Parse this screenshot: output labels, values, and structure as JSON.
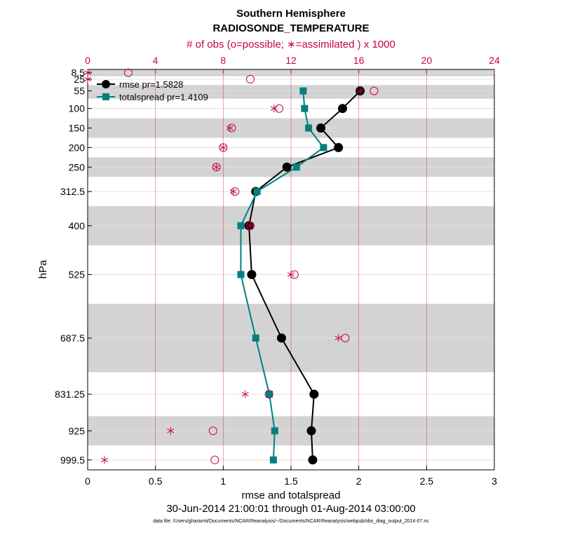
{
  "colors": {
    "rmse": "#000000",
    "spread": "#008080",
    "obs": "#c8004f",
    "band": "#d3d3d3"
  },
  "chart_data": {
    "type": "line",
    "title": "Southern Hemisphere",
    "subtitle": "RADIOSONDE_TEMPERATURE",
    "top_axis_label": "# of obs (o=possible; ∗=assimilated ) x 1000",
    "xlabel": "rmse and totalspread",
    "ylabel": "hPa",
    "date_range": "30-Jun-2014 21:00:01 through 01-Aug-2014 03:00:00",
    "file_note": "data file: /Users/gharamti/Documents/NCAR/Reanalysis/~/Documents/NCAR/Reanalysis/webpub/obs_diag_output_2014-07.nc",
    "xlim": [
      0,
      3
    ],
    "xticks": [
      "0",
      "0.5",
      "1",
      "1.5",
      "2",
      "2.5",
      "3"
    ],
    "top_xlim": [
      0,
      24
    ],
    "top_xticks": [
      "0",
      "4",
      "8",
      "12",
      "16",
      "20",
      "24"
    ],
    "ylim_hPa": [
      1025,
      0
    ],
    "levels": [
      "8.5",
      "25",
      "55",
      "100",
      "150",
      "200",
      "250",
      "312.5",
      "400",
      "525",
      "687.5",
      "831.25",
      "925",
      "999.5"
    ],
    "level_values": [
      8.5,
      25,
      55,
      100,
      150,
      200,
      250,
      312.5,
      400,
      525,
      687.5,
      831.25,
      925,
      999.5
    ],
    "bands_hPa": [
      [
        0,
        17.5
      ],
      [
        40,
        75
      ],
      [
        125,
        175
      ],
      [
        225,
        275
      ],
      [
        350,
        450
      ],
      [
        600,
        775
      ],
      [
        887.5,
        962.5
      ]
    ],
    "series": [
      {
        "name": "rmse",
        "legend": "rmse pr=1.5828",
        "levels": [
          55,
          100,
          150,
          200,
          250,
          312.5,
          400,
          525,
          687.5,
          831.25,
          925,
          999.5
        ],
        "values": [
          2.01,
          1.88,
          1.72,
          1.85,
          1.47,
          1.24,
          1.19,
          1.21,
          1.43,
          1.67,
          1.65,
          1.66
        ]
      },
      {
        "name": "totalspread",
        "legend": "totalspread pr=1.4109",
        "levels": [
          55,
          100,
          150,
          200,
          250,
          312.5,
          400,
          525,
          687.5,
          831.25,
          925,
          999.5
        ],
        "values": [
          1.59,
          1.6,
          1.63,
          1.74,
          1.54,
          1.25,
          1.13,
          1.13,
          1.24,
          1.34,
          1.38,
          1.37
        ]
      }
    ],
    "obs_possible": {
      "levels": [
        8.5,
        25,
        55,
        100,
        150,
        200,
        250,
        312.5,
        400,
        525,
        687.5,
        831.25,
        925,
        999.5
      ],
      "values": [
        2.4,
        9.6,
        16.9,
        11.3,
        8.5,
        8.0,
        7.6,
        8.7,
        9.6,
        12.2,
        15.2,
        10.7,
        7.4,
        7.5
      ]
    },
    "obs_assimilated": {
      "levels": [
        8.5,
        25,
        55,
        100,
        150,
        200,
        250,
        312.5,
        400,
        525,
        687.5,
        831.25,
        925,
        999.5
      ],
      "values": [
        0.0,
        0.0,
        16.1,
        11.0,
        8.4,
        8.0,
        7.6,
        8.6,
        9.6,
        12.0,
        14.8,
        9.3,
        4.9,
        1.0
      ]
    }
  }
}
